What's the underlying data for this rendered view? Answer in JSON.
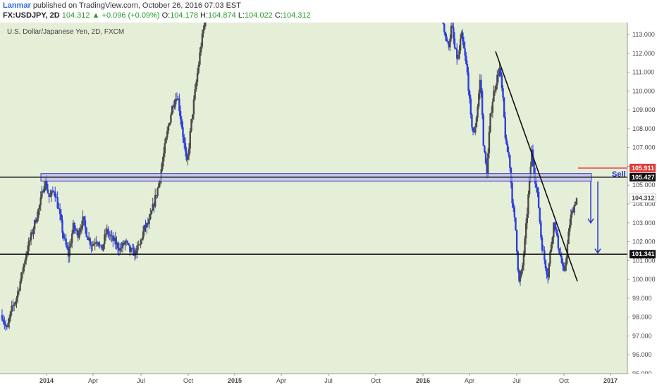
{
  "header": {
    "author": "Lanmar",
    "published": "published on TradingView.com, October 26, 2016 07:03 EST",
    "symbol": "FX:USDJPY, 2D",
    "last": "104.312",
    "change": "+0.096 (+0.09%)",
    "o_label": "O:",
    "o_val": "104.178",
    "h_label": "H:",
    "h_val": "104.874",
    "l_label": "L:",
    "l_val": "104.022",
    "c_label": "C:",
    "c_val": "104.312"
  },
  "colors": {
    "plot_bg": "#e5eed7",
    "up": "#4a4a4a",
    "down": "#2f3fd8",
    "level_line": "#111111",
    "zone_fill": "#b9b7ef",
    "zone_stroke": "#4444cc",
    "arrow": "#1f2fcf",
    "red_line": "#e53935",
    "sell_text": "#1f2fcf"
  },
  "chart_data": {
    "type": "candlestick",
    "title": "U.S. Dollar/Japanese Yen, 2D, FXCM",
    "y_ticks": [
      "113.000",
      "112.000",
      "111.000",
      "110.000",
      "109.000",
      "108.000",
      "107.000",
      "106.000",
      "105.000",
      "104.000",
      "103.000",
      "102.000",
      "101.000",
      "100.000",
      "99.000",
      "98.000",
      "97.000",
      "96.000",
      "95.000"
    ],
    "x_ticks": [
      {
        "label": "2014",
        "bold": true
      },
      {
        "label": "Apr",
        "bold": false
      },
      {
        "label": "Jul",
        "bold": false
      },
      {
        "label": "Oct",
        "bold": false
      },
      {
        "label": "2015",
        "bold": true
      },
      {
        "label": "Apr",
        "bold": false
      },
      {
        "label": "Jul",
        "bold": false
      },
      {
        "label": "Oct",
        "bold": false
      },
      {
        "label": "2016",
        "bold": true
      },
      {
        "label": "Apr",
        "bold": false
      },
      {
        "label": "Jul",
        "bold": false
      },
      {
        "label": "Oct",
        "bold": false
      },
      {
        "label": "2017",
        "bold": true
      }
    ],
    "ylim": [
      94.9,
      113.5
    ],
    "horizontal_levels": [
      105.427,
      101.341
    ],
    "supply_zone": [
      105.22,
      105.62
    ],
    "red_level": 105.911,
    "price_labels": [
      {
        "value": 105.911,
        "text": "105.911",
        "style": "red"
      },
      {
        "value": 105.427,
        "text": "105.427",
        "style": "black"
      },
      {
        "value": 104.312,
        "text": "104.312",
        "style": "plain"
      },
      {
        "value": 101.341,
        "text": "101.341",
        "style": "black"
      }
    ],
    "annotation_sell": "Sell",
    "segment_a": {
      "description": "Oct 2013 – Nov 2014",
      "path": [
        {
          "t": 0,
          "p": 98.1
        },
        {
          "t": 1,
          "p": 97.3
        },
        {
          "t": 2,
          "p": 98.4
        },
        {
          "t": 3,
          "p": 99.0
        },
        {
          "t": 4,
          "p": 100.1
        },
        {
          "t": 5,
          "p": 101.3
        },
        {
          "t": 6,
          "p": 102.2
        },
        {
          "t": 7,
          "p": 103.1
        },
        {
          "t": 8,
          "p": 104.0
        },
        {
          "t": 9,
          "p": 105.3
        },
        {
          "t": 10,
          "p": 104.3
        },
        {
          "t": 11,
          "p": 104.8
        },
        {
          "t": 12,
          "p": 103.6
        },
        {
          "t": 13,
          "p": 102.2
        },
        {
          "t": 14,
          "p": 101.3
        },
        {
          "t": 15,
          "p": 102.8
        },
        {
          "t": 16,
          "p": 102.4
        },
        {
          "t": 17,
          "p": 103.2
        },
        {
          "t": 18,
          "p": 102.3
        },
        {
          "t": 19,
          "p": 101.8
        },
        {
          "t": 20,
          "p": 102.2
        },
        {
          "t": 21,
          "p": 101.5
        },
        {
          "t": 22,
          "p": 102.6
        },
        {
          "t": 23,
          "p": 102.2
        },
        {
          "t": 24,
          "p": 101.9
        },
        {
          "t": 25,
          "p": 101.6
        },
        {
          "t": 26,
          "p": 102.0
        },
        {
          "t": 27,
          "p": 101.5
        },
        {
          "t": 28,
          "p": 101.4
        },
        {
          "t": 29,
          "p": 101.8
        },
        {
          "t": 30,
          "p": 102.7
        },
        {
          "t": 31,
          "p": 103.0
        },
        {
          "t": 32,
          "p": 104.0
        },
        {
          "t": 33,
          "p": 105.0
        },
        {
          "t": 34,
          "p": 106.5
        },
        {
          "t": 35,
          "p": 108.0
        },
        {
          "t": 36,
          "p": 109.3
        },
        {
          "t": 37,
          "p": 109.8
        },
        {
          "t": 38,
          "p": 108.0
        },
        {
          "t": 39,
          "p": 106.0
        },
        {
          "t": 40,
          "p": 108.5
        },
        {
          "t": 41,
          "p": 110.5
        },
        {
          "t": 42,
          "p": 112.5
        },
        {
          "t": 43,
          "p": 114.0
        }
      ]
    },
    "segment_b": {
      "description": "Jan 2016 – Oct 2016",
      "path": [
        {
          "t": 0,
          "p": 114.0
        },
        {
          "t": 1,
          "p": 113.0
        },
        {
          "t": 2,
          "p": 112.3
        },
        {
          "t": 3,
          "p": 113.5
        },
        {
          "t": 4,
          "p": 112.2
        },
        {
          "t": 5,
          "p": 111.6
        },
        {
          "t": 6,
          "p": 113.0
        },
        {
          "t": 7,
          "p": 112.0
        },
        {
          "t": 8,
          "p": 110.8
        },
        {
          "t": 9,
          "p": 108.5
        },
        {
          "t": 10,
          "p": 107.6
        },
        {
          "t": 11,
          "p": 109.0
        },
        {
          "t": 12,
          "p": 110.8
        },
        {
          "t": 13,
          "p": 107.0
        },
        {
          "t": 14,
          "p": 105.6
        },
        {
          "t": 15,
          "p": 108.5
        },
        {
          "t": 16,
          "p": 109.8
        },
        {
          "t": 17,
          "p": 110.6
        },
        {
          "t": 18,
          "p": 111.2
        },
        {
          "t": 19,
          "p": 109.5
        },
        {
          "t": 20,
          "p": 107.0
        },
        {
          "t": 21,
          "p": 106.5
        },
        {
          "t": 22,
          "p": 104.0
        },
        {
          "t": 23,
          "p": 102.6
        },
        {
          "t": 24,
          "p": 99.8
        },
        {
          "t": 25,
          "p": 100.5
        },
        {
          "t": 26,
          "p": 102.3
        },
        {
          "t": 27,
          "p": 104.6
        },
        {
          "t": 28,
          "p": 106.8
        },
        {
          "t": 29,
          "p": 105.4
        },
        {
          "t": 30,
          "p": 104.2
        },
        {
          "t": 31,
          "p": 102.0
        },
        {
          "t": 32,
          "p": 101.0
        },
        {
          "t": 33,
          "p": 100.2
        },
        {
          "t": 34,
          "p": 101.8
        },
        {
          "t": 35,
          "p": 103.2
        },
        {
          "t": 36,
          "p": 102.0
        },
        {
          "t": 37,
          "p": 101.2
        },
        {
          "t": 38,
          "p": 100.2
        },
        {
          "t": 39,
          "p": 101.6
        },
        {
          "t": 40,
          "p": 103.2
        },
        {
          "t": 41,
          "p": 103.8
        },
        {
          "t": 42,
          "p": 104.3
        }
      ]
    },
    "trendline": {
      "from": {
        "date_label": "May 2016",
        "p": 112.1
      },
      "to": {
        "date_label": "Sep 2016",
        "p": 99.9
      }
    }
  }
}
